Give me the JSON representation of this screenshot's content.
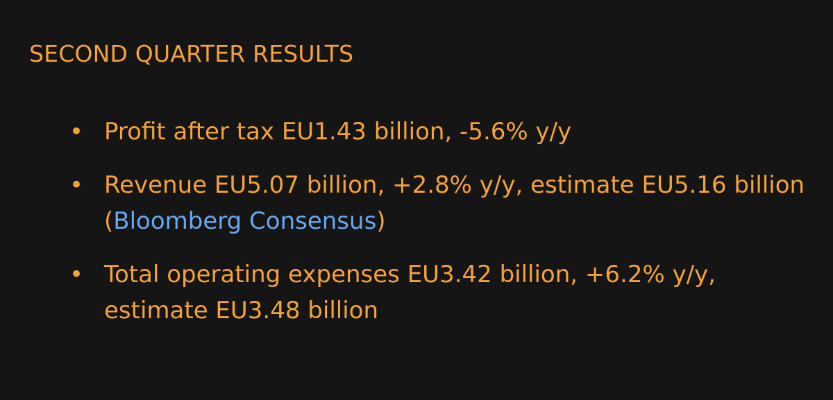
{
  "headline": "SECOND QUARTER RESULTS",
  "bullet_glyph": "•",
  "items": [
    {
      "text": "Profit after tax EU1.43 billion, -5.6% y/y"
    },
    {
      "text_before": "Revenue EU5.07 billion, +2.8% y/y, estimate EU5.16 billion ",
      "paren_open": "(",
      "link_text": "Bloomberg Consensus",
      "paren_close": ")"
    },
    {
      "text": "Total operating expenses EU3.42 billion, +6.2% y/y, estimate EU3.48 billion"
    }
  ],
  "colors": {
    "background": "#151515",
    "text": "#f5a23a",
    "link": "#68a7f0"
  }
}
